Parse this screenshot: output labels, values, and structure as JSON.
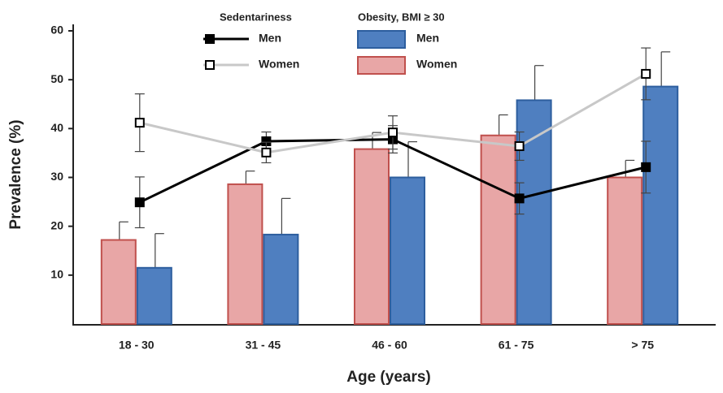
{
  "chart_data": {
    "type": "combo",
    "ylabel": "Prevalence (%)",
    "xlabel": "Age (years)",
    "categories": [
      "18 - 30",
      "31 - 45",
      "46 - 60",
      "61 - 75",
      "> 75"
    ],
    "ylim": [
      0,
      60
    ],
    "yticks": [
      10,
      20,
      30,
      40,
      50,
      60
    ],
    "lines": {
      "title": "Sedentariness",
      "series": [
        {
          "name": "Men",
          "color": "#000000",
          "marker_fill": "#000000",
          "values": [
            24.9,
            37.4,
            37.8,
            25.7,
            32.1
          ],
          "errors": [
            5.2,
            1.9,
            2.8,
            3.2,
            5.3
          ]
        },
        {
          "name": "Women",
          "color": "#c8c8c8",
          "marker_fill": "#ffffff",
          "values": [
            41.2,
            35.1,
            39.2,
            36.4,
            51.2
          ],
          "errors": [
            5.9,
            2.1,
            3.4,
            2.9,
            5.3
          ]
        }
      ]
    },
    "bars": {
      "title": "Obesity, BMI ≥ 30",
      "series": [
        {
          "name": "Men",
          "color": "#4f7fc0",
          "edge": "#2d5e9e",
          "values": [
            11.5,
            18.3,
            30,
            45.8,
            48.6
          ],
          "errors": [
            7,
            7.4,
            7.3,
            7.1,
            7.1
          ]
        },
        {
          "name": "Women",
          "color": "#e8a6a6",
          "edge": "#c0504d",
          "values": [
            17.2,
            28.6,
            35.8,
            38.6,
            30
          ],
          "errors": [
            3.7,
            2.7,
            3.4,
            4.2,
            3.5
          ]
        }
      ]
    }
  }
}
